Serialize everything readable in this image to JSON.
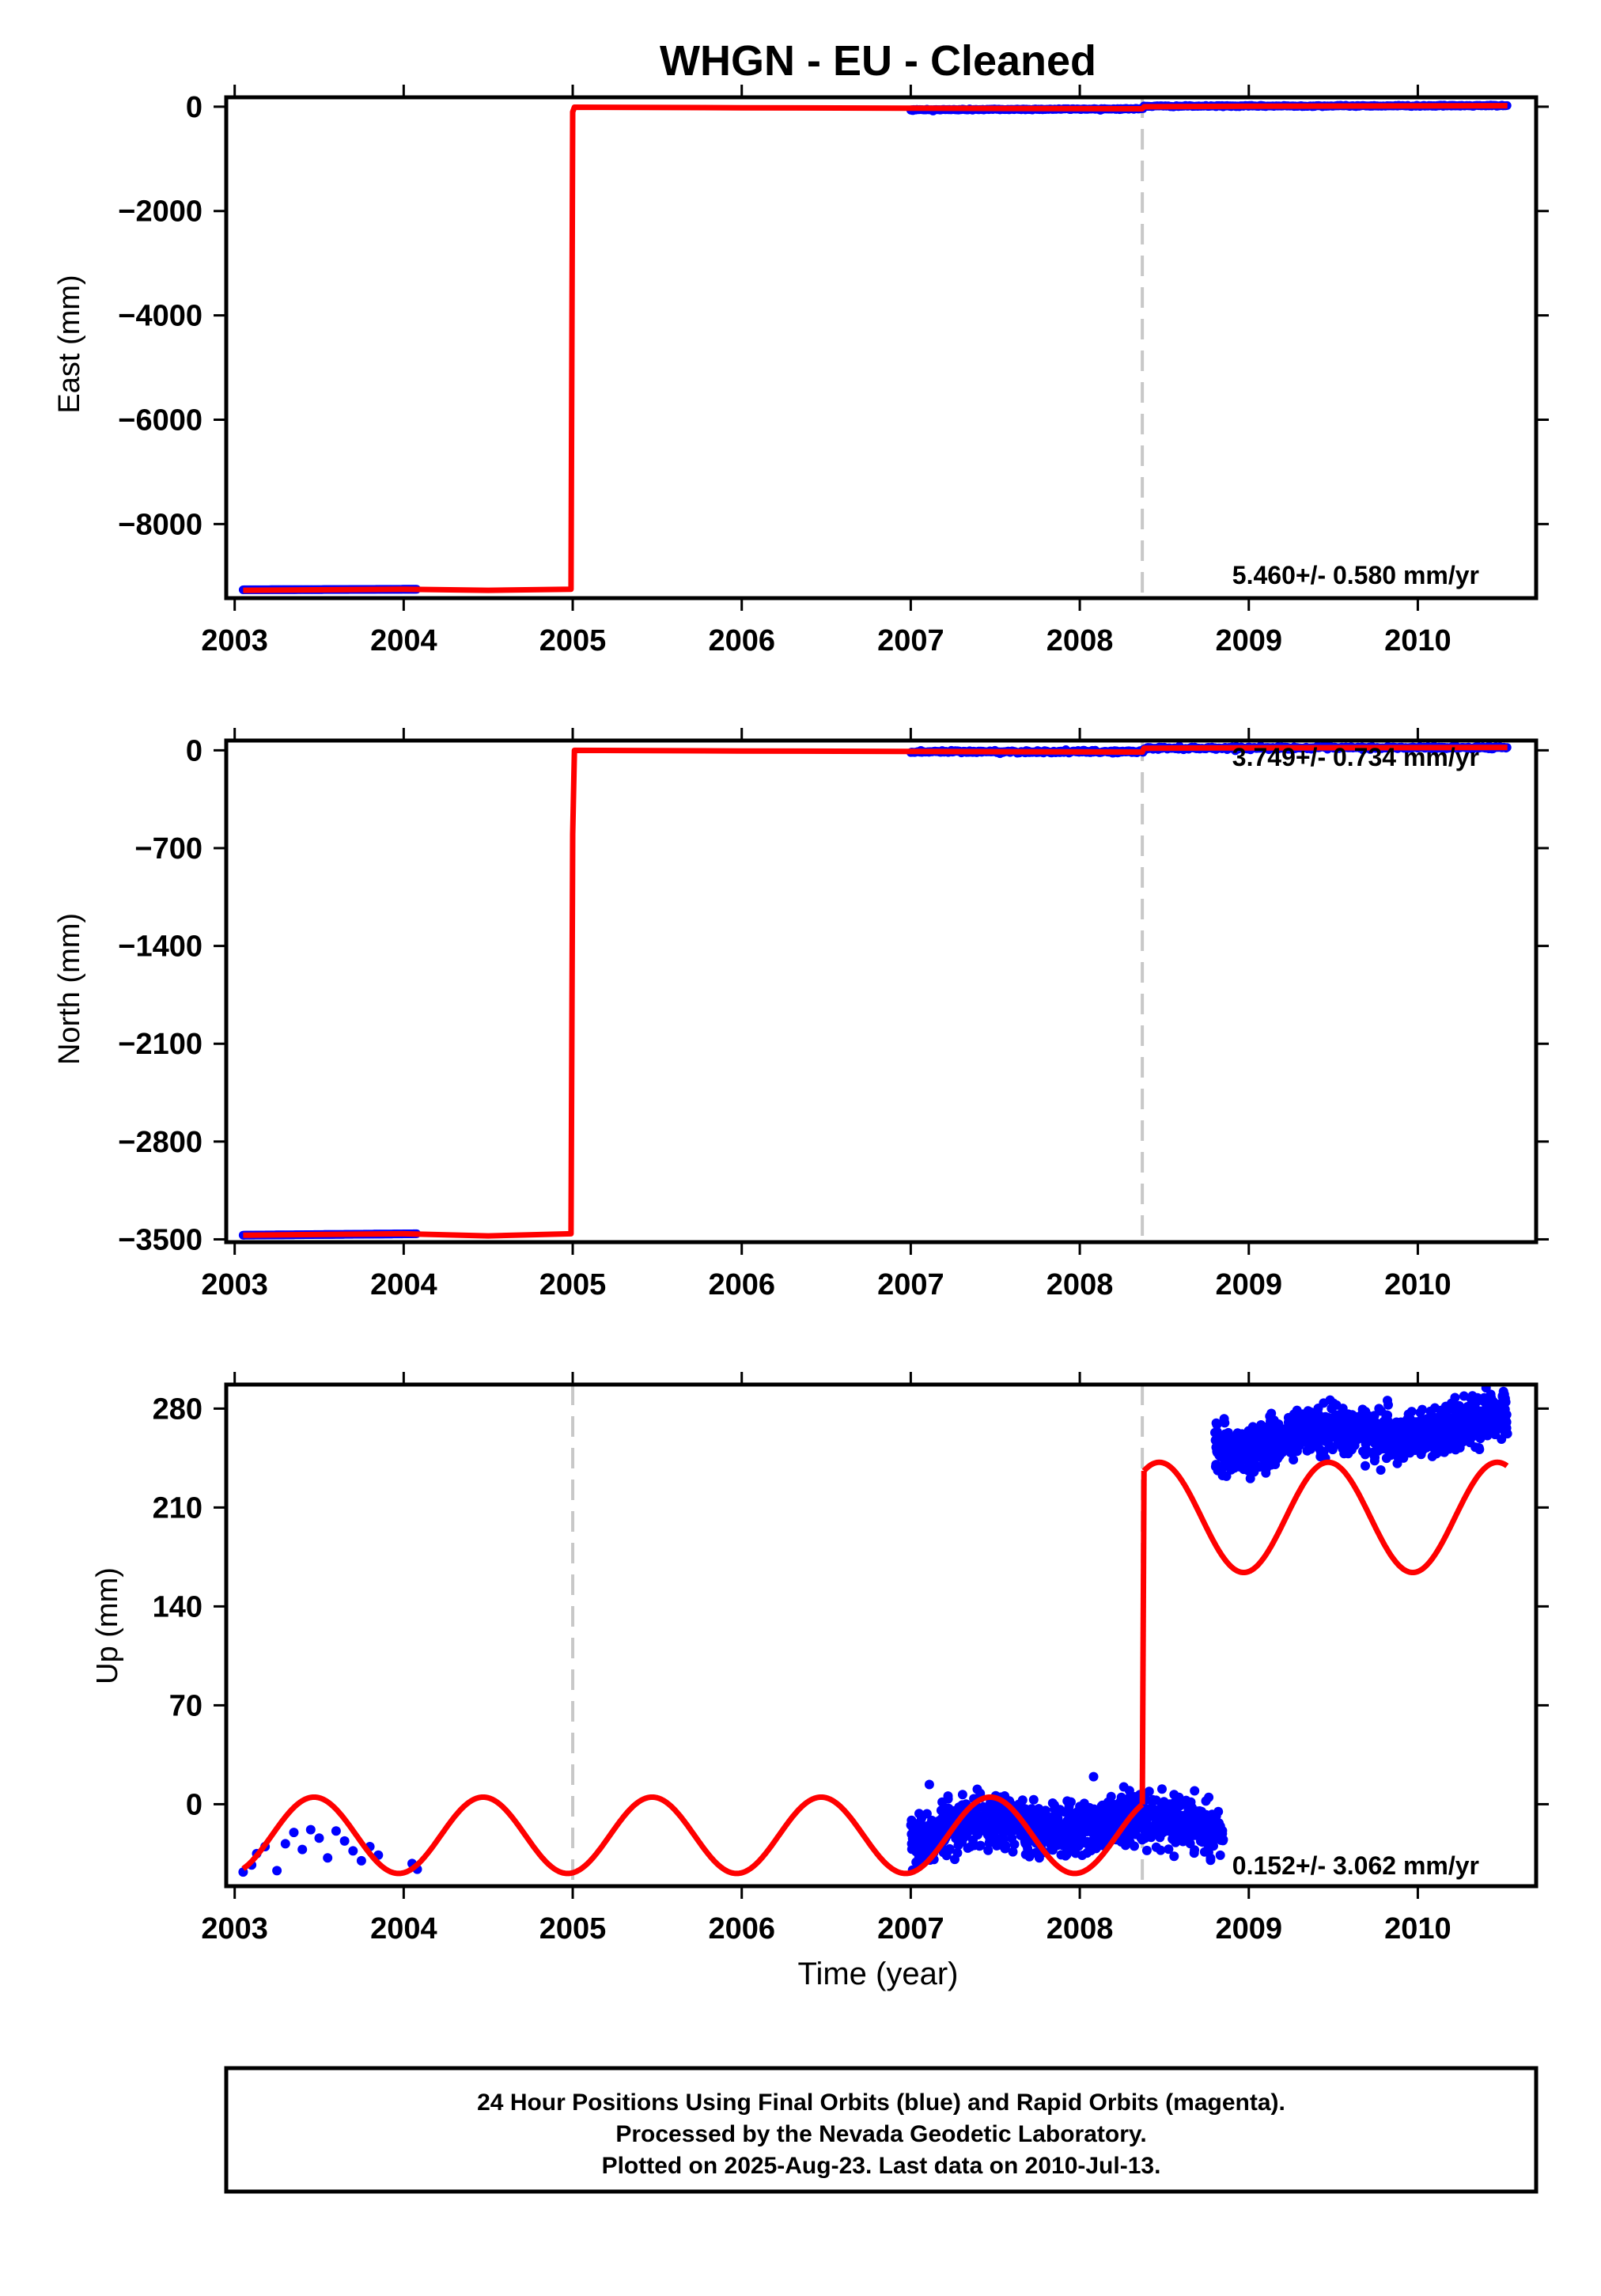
{
  "chart_data": [
    {
      "type": "scatter",
      "title": "WHGN  - EU - Cleaned",
      "ylabel": "East (mm)",
      "xlabel": "",
      "xlim": [
        2002.95,
        2010.7
      ],
      "ylim": [
        -9420,
        180
      ],
      "xticks": [
        2003,
        2004,
        2005,
        2006,
        2007,
        2008,
        2009,
        2010
      ],
      "yticks": [
        0,
        -2000,
        -4000,
        -6000,
        -8000
      ],
      "ytick_labels": [
        "0",
        "−2000",
        "−4000",
        "−6000",
        "−8000"
      ],
      "rate_label": "5.460+/- 0.580 mm/yr",
      "offset_lines": [
        2008.37
      ],
      "obs_segments": [
        {
          "x0": 2003.05,
          "x1": 2004.08,
          "y0": -9260,
          "y1": -9250,
          "sd": 0
        },
        {
          "x0": 2007.0,
          "x1": 2008.38,
          "y0": -60,
          "y1": -40,
          "sd": 6
        },
        {
          "x0": 2008.38,
          "x1": 2010.53,
          "y0": 10,
          "y1": 20,
          "sd": 6
        }
      ],
      "model_line": [
        [
          2003.05,
          -9270
        ],
        [
          2004.0,
          -9250
        ],
        [
          2004.5,
          -9270
        ],
        [
          2004.99,
          -9250
        ],
        [
          2005.0,
          -100
        ],
        [
          2005.01,
          -10
        ],
        [
          2006.0,
          -20
        ],
        [
          2007.0,
          -30
        ],
        [
          2008.37,
          -40
        ],
        [
          2008.38,
          0
        ],
        [
          2009.0,
          10
        ],
        [
          2010.53,
          20
        ]
      ]
    },
    {
      "type": "scatter",
      "title": "",
      "ylabel": "North (mm)",
      "xlabel": "",
      "xlim": [
        2002.95,
        2010.7
      ],
      "ylim": [
        -3520,
        70
      ],
      "xticks": [
        2003,
        2004,
        2005,
        2006,
        2007,
        2008,
        2009,
        2010
      ],
      "yticks": [
        0,
        -700,
        -1400,
        -2100,
        -2800,
        -3500
      ],
      "ytick_labels": [
        "0",
        "−700",
        "−1400",
        "−2100",
        "−2800",
        "−3500"
      ],
      "rate_label": "3.749+/- 0.734 mm/yr",
      "offset_lines": [
        2008.37
      ],
      "obs_segments": [
        {
          "x0": 2003.05,
          "x1": 2004.08,
          "y0": -3470,
          "y1": -3460,
          "sd": 0
        },
        {
          "x0": 2007.0,
          "x1": 2008.38,
          "y0": -10,
          "y1": -10,
          "sd": 5
        },
        {
          "x0": 2008.38,
          "x1": 2010.53,
          "y0": 15,
          "y1": 20,
          "sd": 5
        }
      ],
      "model_line": [
        [
          2003.05,
          -3470
        ],
        [
          2004.0,
          -3460
        ],
        [
          2004.5,
          -3475
        ],
        [
          2004.99,
          -3460
        ],
        [
          2005.0,
          -600
        ],
        [
          2005.01,
          0
        ],
        [
          2006.0,
          -5
        ],
        [
          2007.0,
          -8
        ],
        [
          2008.37,
          -12
        ],
        [
          2008.38,
          15
        ],
        [
          2009.0,
          18
        ],
        [
          2010.53,
          20
        ]
      ]
    },
    {
      "type": "scatter",
      "title": "",
      "ylabel": "Up (mm)",
      "xlabel": "Time (year)",
      "xlim": [
        2002.95,
        2010.7
      ],
      "ylim": [
        -58,
        297
      ],
      "xticks": [
        2003,
        2004,
        2005,
        2006,
        2007,
        2008,
        2009,
        2010
      ],
      "yticks": [
        280,
        210,
        140,
        70,
        0
      ],
      "ytick_labels": [
        "280",
        "210",
        "140",
        "70",
        "0"
      ],
      "rate_label": "0.152+/- 3.062 mm/yr",
      "offset_lines": [
        2005.0,
        2008.37
      ],
      "obs_points": [
        [
          2003.05,
          -48
        ],
        [
          2003.1,
          -43
        ],
        [
          2003.13,
          -35
        ],
        [
          2003.18,
          -30
        ],
        [
          2003.25,
          -47
        ],
        [
          2003.3,
          -28
        ],
        [
          2003.35,
          -20
        ],
        [
          2003.4,
          -32
        ],
        [
          2003.45,
          -18
        ],
        [
          2003.5,
          -24
        ],
        [
          2003.55,
          -38
        ],
        [
          2003.6,
          -19
        ],
        [
          2003.65,
          -26
        ],
        [
          2003.7,
          -33
        ],
        [
          2003.75,
          -40
        ],
        [
          2003.8,
          -30
        ],
        [
          2003.85,
          -36
        ],
        [
          2004.05,
          -42
        ],
        [
          2004.08,
          -46
        ]
      ],
      "obs_clouds": [
        {
          "x0": 2007.0,
          "x1": 2008.38,
          "y0": -20,
          "y1": -10,
          "sd": 9,
          "n": 900
        },
        {
          "x0": 2008.38,
          "x1": 2008.85,
          "y0": -15,
          "y1": -18,
          "sd": 9,
          "n": 250
        },
        {
          "x0": 2008.8,
          "x1": 2010.53,
          "y0": 255,
          "y1": 270,
          "sd": 8,
          "n": 1200
        }
      ],
      "model_params": [
        {
          "x0": 2003.05,
          "x1": 2008.37,
          "base": -22,
          "amp": 27,
          "phase": 0.22
        },
        {
          "x0": 2008.38,
          "x1": 2010.53,
          "base": 203,
          "amp": 39,
          "phase": 0.22
        }
      ]
    }
  ],
  "footer": {
    "line1": "24 Hour Positions Using Final Orbits (blue) and Rapid Orbits (magenta).",
    "line2": "Processed by the Nevada Geodetic Laboratory.",
    "line3": "Plotted on 2025-Aug-23. Last data on 2010-Jul-13."
  },
  "colors": {
    "obs": "#0000ff",
    "model": "#ff0000",
    "offset": "#c8c8c8",
    "frame": "#000000"
  }
}
